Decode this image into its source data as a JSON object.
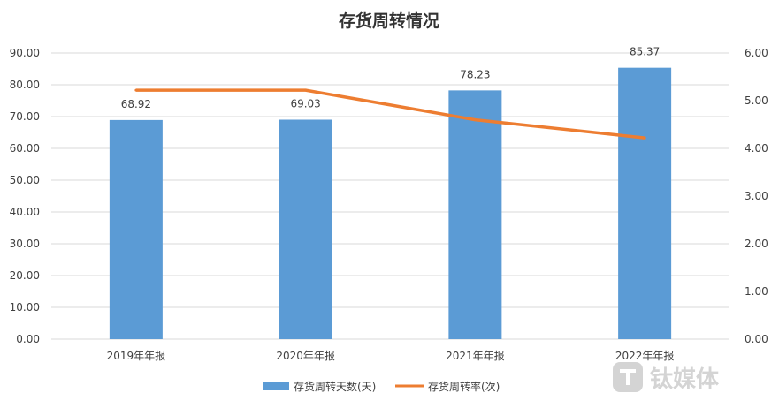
{
  "chart_data": {
    "type": "bar+line",
    "title": "存货周转情况",
    "categories": [
      "2019年年报",
      "2020年年报",
      "2021年年报",
      "2022年年报"
    ],
    "series": [
      {
        "name": "存货周转天数(天)",
        "type": "bar",
        "axis": "left",
        "color": "#5b9bd5",
        "values": [
          68.92,
          69.03,
          78.23,
          85.37
        ],
        "data_labels": [
          "68.92",
          "69.03",
          "78.23",
          "85.37"
        ]
      },
      {
        "name": "存货周转率(次)",
        "type": "line",
        "axis": "right",
        "color": "#ed7d31",
        "values": [
          5.22,
          5.22,
          4.6,
          4.22
        ]
      }
    ],
    "y_left": {
      "range": [
        0,
        90
      ],
      "ticks": [
        "0.00",
        "10.00",
        "20.00",
        "30.00",
        "40.00",
        "50.00",
        "60.00",
        "70.00",
        "80.00",
        "90.00"
      ]
    },
    "y_right": {
      "range": [
        0,
        6
      ],
      "ticks": [
        "0.00",
        "1.00",
        "2.00",
        "3.00",
        "4.00",
        "5.00",
        "6.00"
      ]
    },
    "grid": true,
    "legend_position": "bottom"
  },
  "watermark": {
    "text": "钛媒体",
    "icon": "tmt-logo-icon"
  }
}
